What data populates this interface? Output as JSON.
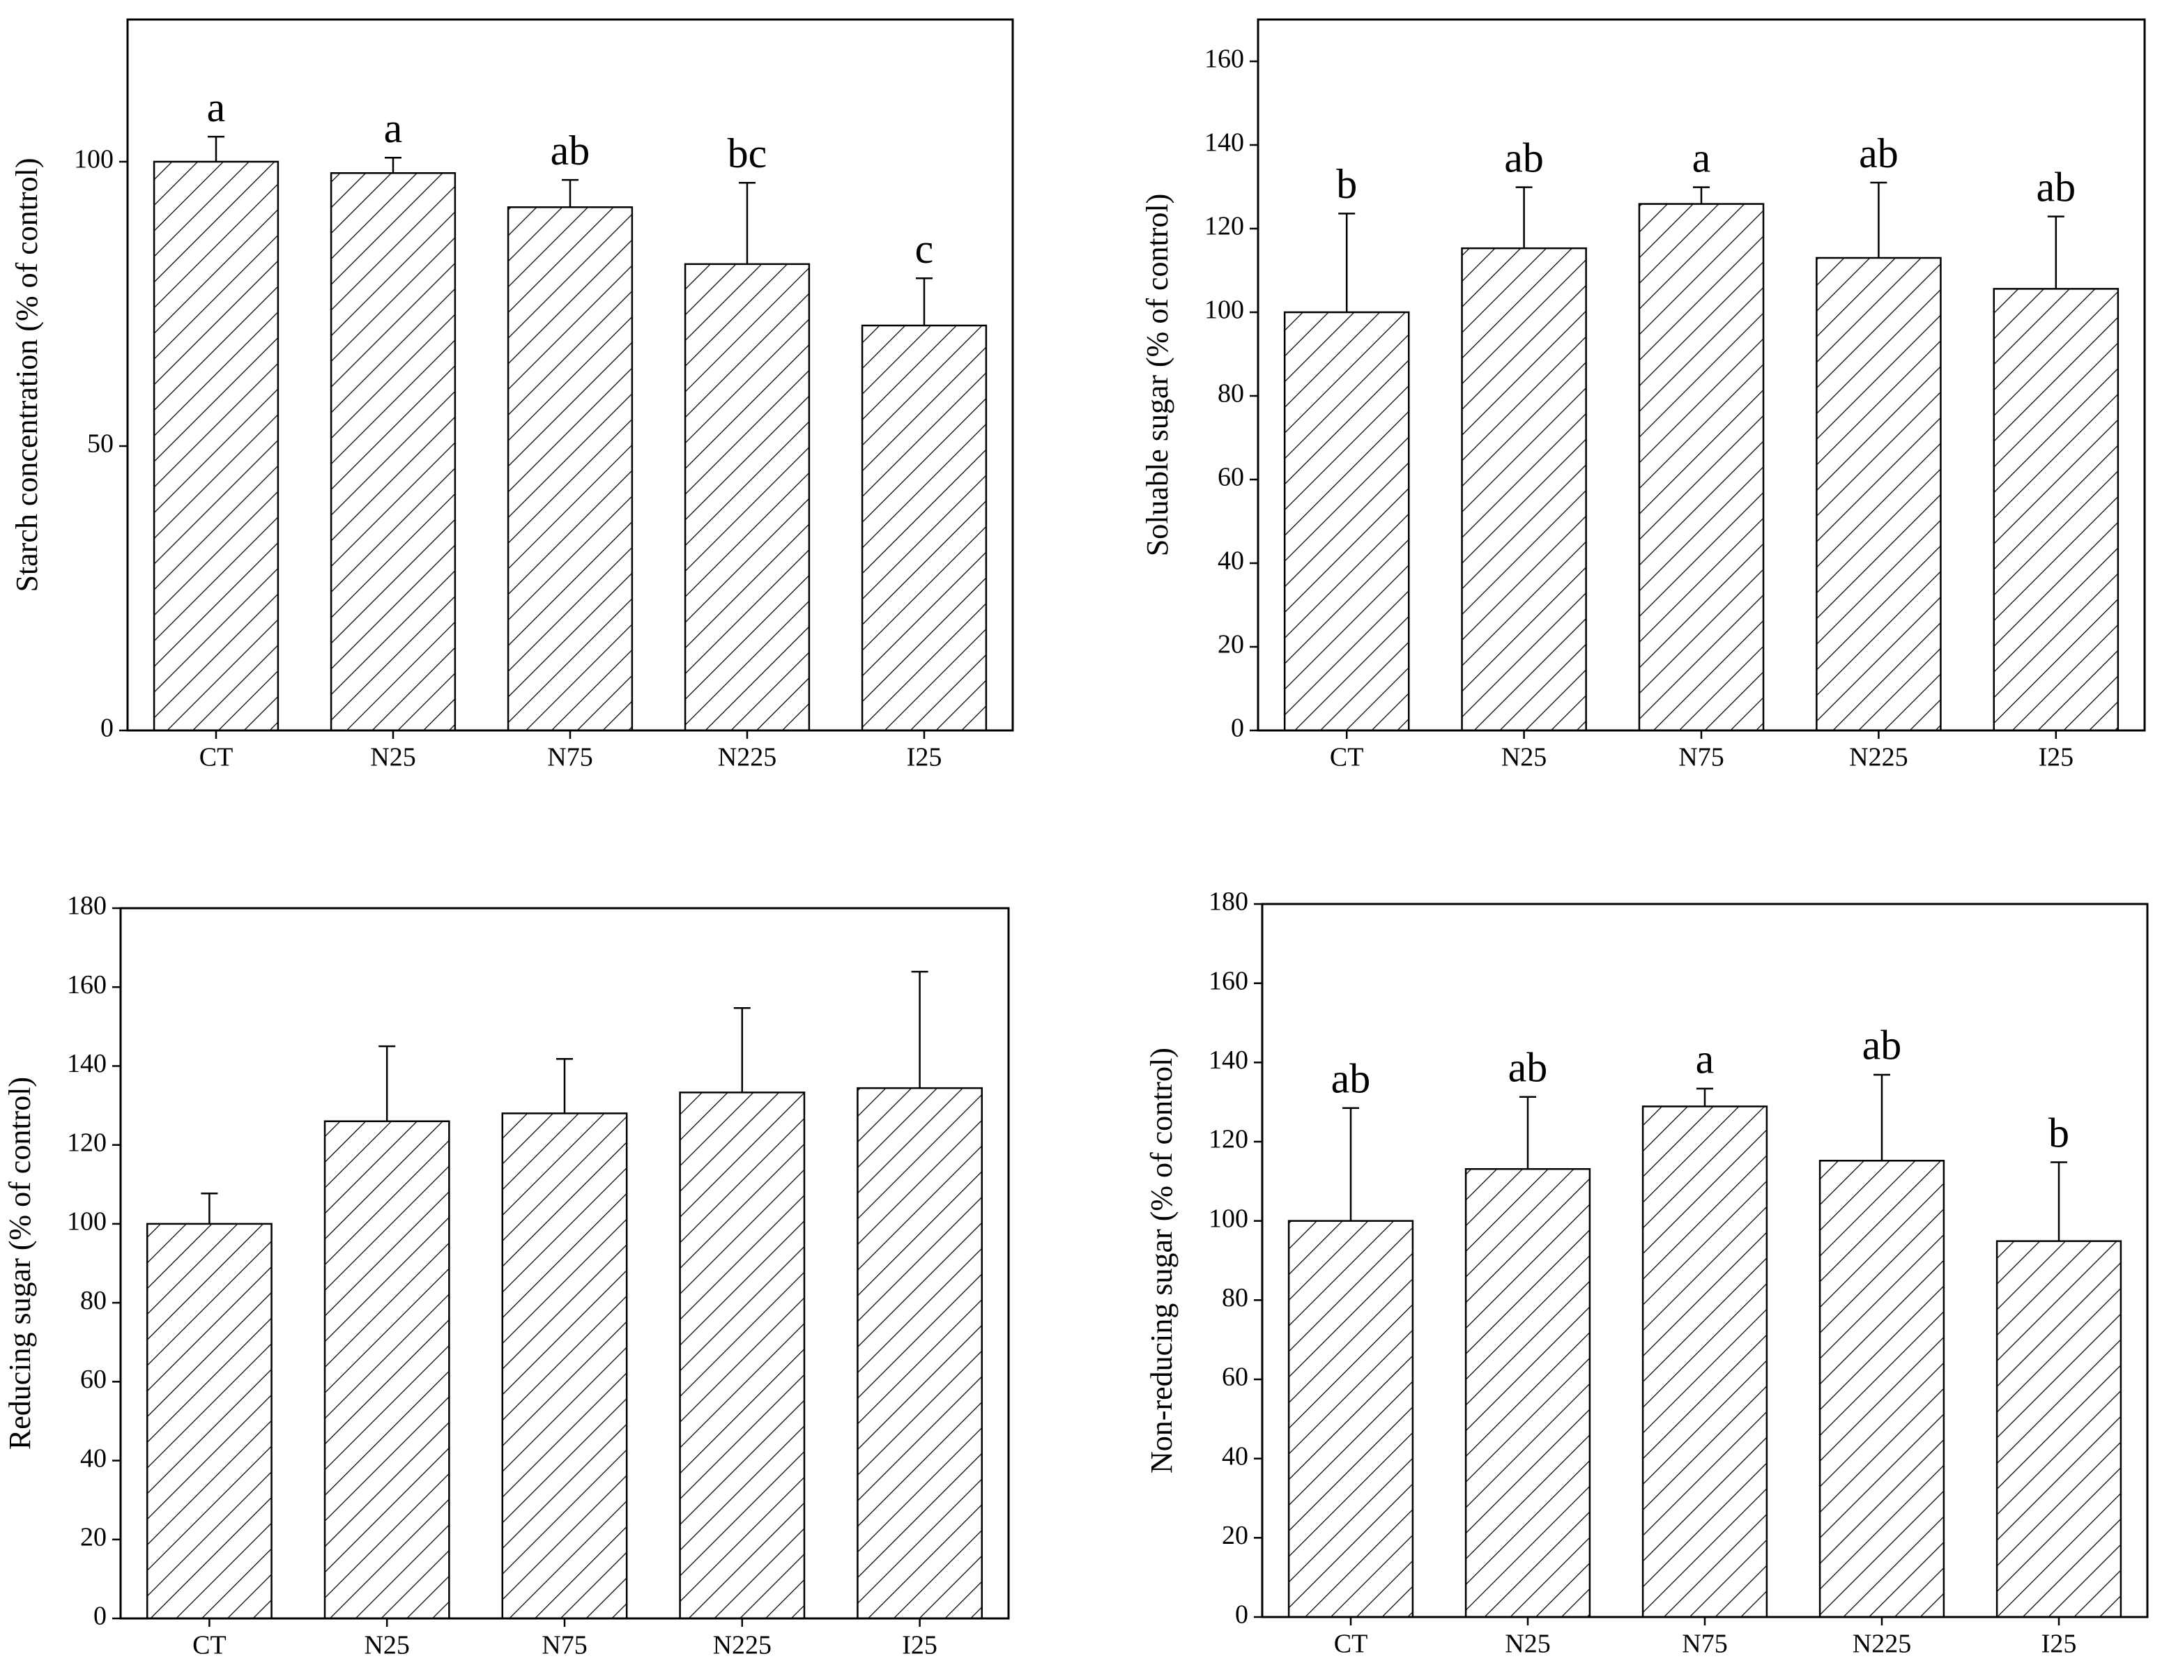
{
  "chart_data": [
    {
      "type": "bar",
      "y_label": "Starch concentration (% of control)",
      "categories": [
        "CT",
        "N25",
        "N75",
        "N225",
        "I25"
      ],
      "values": [
        100,
        98,
        92,
        82,
        71.2
      ],
      "errors": [
        4.4,
        2.7,
        4.8,
        14.3,
        8.3
      ],
      "annotations": [
        "a",
        "a",
        "ab",
        "bc",
        "c"
      ],
      "color": "#000000",
      "ylim": [
        0,
        125
      ],
      "yticks": [
        0,
        50,
        100
      ]
    },
    {
      "type": "bar",
      "y_label": "Soluable sugar (% of control)",
      "categories": [
        "CT",
        "N25",
        "N75",
        "N225",
        "I25"
      ],
      "values": [
        100,
        115.3,
        125.9,
        113,
        105.6
      ],
      "errors": [
        23.6,
        14.6,
        4,
        18,
        17.3
      ],
      "annotations": [
        "b",
        "ab",
        "a",
        "ab",
        "ab"
      ],
      "color": "#000000",
      "ylim": [
        0,
        170
      ],
      "yticks": [
        0,
        20,
        40,
        60,
        80,
        100,
        120,
        140,
        160
      ]
    },
    {
      "type": "bar",
      "y_label": "Reducing sugar (% of control)",
      "categories": [
        "CT",
        "N25",
        "N75",
        "N225",
        "I25"
      ],
      "values": [
        100,
        126,
        128,
        133.3,
        134.4
      ],
      "errors": [
        7.7,
        19,
        13.8,
        21.4,
        29.5
      ],
      "color": "#000000",
      "ylim": [
        0,
        180
      ],
      "yticks": [
        0,
        20,
        40,
        60,
        80,
        100,
        120,
        140,
        160,
        180
      ]
    },
    {
      "type": "bar",
      "y_label": "Non-reducing sugar  (% of control)",
      "categories": [
        "CT",
        "N25",
        "N75",
        "N225",
        "I25"
      ],
      "values": [
        100,
        113.1,
        128.9,
        115.2,
        94.9
      ],
      "errors": [
        28.5,
        18.2,
        4.5,
        21.7,
        19.9
      ],
      "annotations": [
        "ab",
        "ab",
        "a",
        "ab",
        "b"
      ],
      "color": "#000000",
      "ylim": [
        0,
        180
      ],
      "yticks": [
        0,
        20,
        40,
        60,
        80,
        100,
        120,
        140,
        160,
        180
      ]
    }
  ]
}
